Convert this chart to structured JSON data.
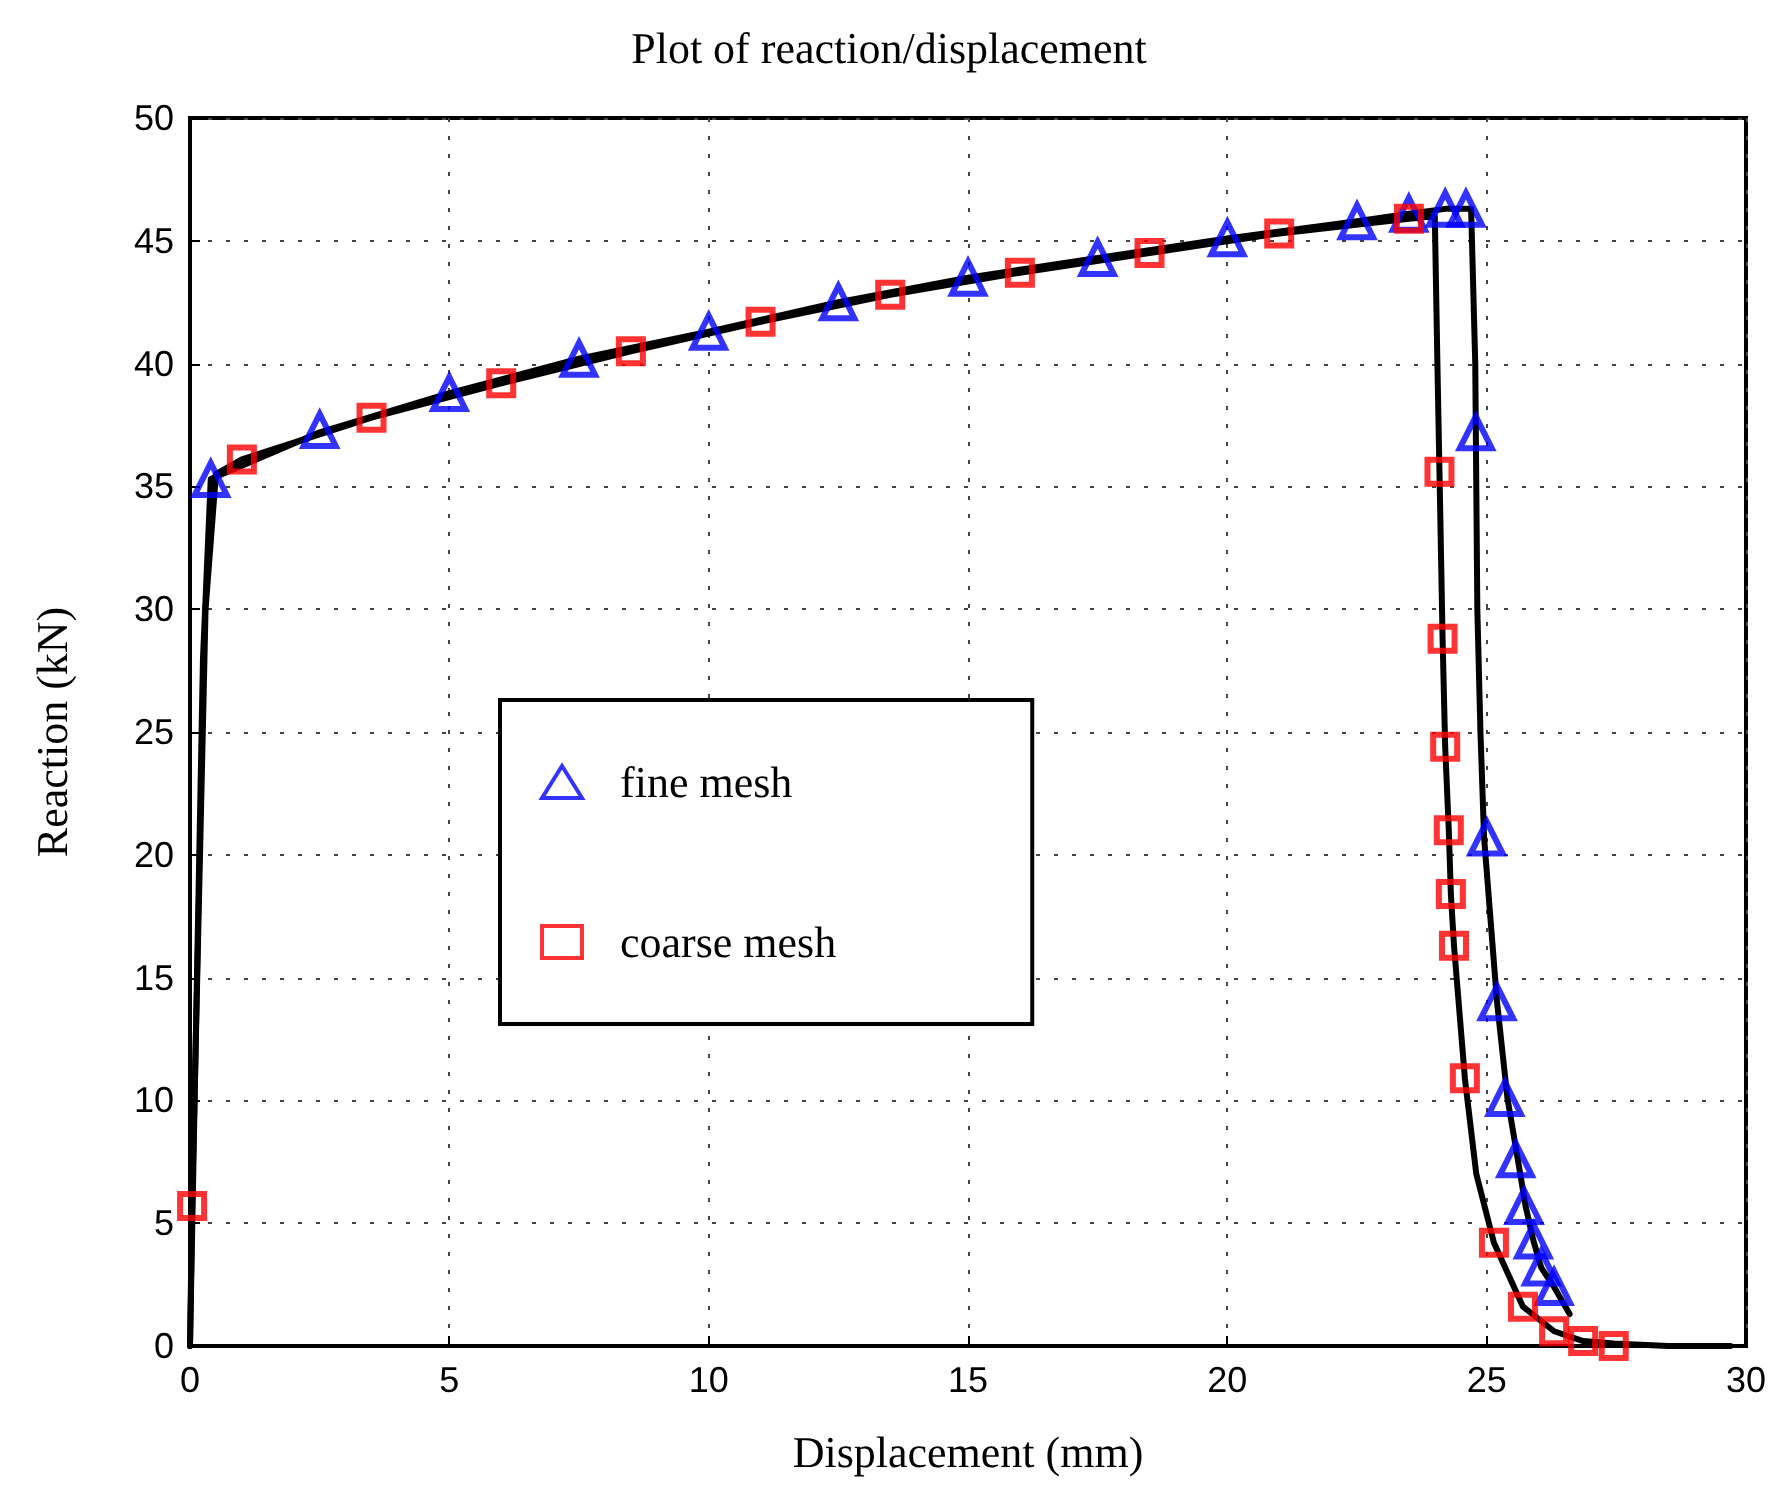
{
  "chart_data": {
    "type": "line",
    "title": "Plot of reaction/displacement",
    "xlabel": "Displacement (mm)",
    "ylabel": "Reaction (kN)",
    "xlim": [
      0,
      30
    ],
    "xticks": [
      0,
      5,
      10,
      15,
      20,
      25,
      30
    ],
    "ylim": [
      0,
      50
    ],
    "yticks": [
      0,
      5,
      10,
      15,
      20,
      25,
      30,
      35,
      40,
      45,
      50
    ],
    "grid": true,
    "legend": "left",
    "series": [
      {
        "color": "#000000",
        "marker": "none",
        "x": [
          0,
          0.25,
          0.4,
          2.5,
          5,
          7.5,
          10,
          12.5,
          15,
          17.5,
          20,
          22.5,
          23.5,
          24.2,
          24.7,
          24.78,
          24.82,
          24.88,
          24.95,
          25.2,
          25.4,
          25.6,
          25.75,
          25.9,
          26.05,
          26.3,
          26.6
        ],
        "values": [
          0,
          28,
          35.3,
          37.2,
          38.8,
          40.2,
          41.3,
          42.5,
          43.5,
          44.3,
          45.1,
          45.8,
          46.1,
          46.3,
          46.3,
          40,
          30,
          25,
          20.7,
          14,
          10.1,
          7.6,
          5.7,
          4.3,
          3.2,
          2.4,
          1.3
        ]
      },
      {
        "color": "#000000",
        "marker": "none",
        "x": [
          0,
          0.04,
          0.3,
          0.5,
          1,
          3.5,
          6,
          8.5,
          11,
          13.5,
          16,
          18.5,
          21,
          23.5,
          24.0,
          24.05,
          24.09,
          24.15,
          24.2,
          24.27,
          24.31,
          24.37,
          24.58,
          24.8,
          25.14,
          25.7,
          26.3,
          26.86,
          27.45,
          28.5,
          29.7
        ],
        "values": [
          0,
          5.7,
          30,
          35.5,
          36.1,
          37.8,
          39.2,
          40.5,
          41.7,
          42.8,
          43.7,
          44.5,
          45.3,
          45.9,
          46.0,
          40,
          35.6,
          28.8,
          24.4,
          21.0,
          18.4,
          16.3,
          10.9,
          7,
          4.2,
          1.6,
          0.6,
          0.2,
          0.1,
          0,
          0
        ]
      },
      {
        "type": "scatter",
        "name": "fine mesh",
        "color": "#0000ff",
        "marker": "triangle",
        "x": [
          0.4,
          2.5,
          5,
          7.5,
          10,
          12.5,
          15,
          17.5,
          20,
          22.5,
          23.5,
          24.2,
          24.6,
          24.79,
          25.0,
          25.2,
          25.35,
          25.56,
          25.72,
          25.9,
          26.05,
          26.3
        ],
        "values": [
          35.3,
          37.3,
          38.8,
          40.2,
          41.3,
          42.5,
          43.5,
          44.3,
          45.1,
          45.8,
          46.1,
          46.3,
          46.3,
          37.2,
          20.7,
          14.0,
          10.1,
          7.6,
          5.7,
          4.3,
          3.2,
          2.4
        ]
      },
      {
        "type": "scatter",
        "name": "coarse mesh",
        "color": "#ff0000",
        "marker": "square",
        "x": [
          0.04,
          1,
          3.5,
          6,
          8.5,
          11,
          13.5,
          16,
          18.5,
          21,
          23.5,
          24.09,
          24.15,
          24.2,
          24.27,
          24.31,
          24.37,
          24.58,
          25.14,
          25.7,
          26.3,
          26.86,
          27.45
        ],
        "values": [
          5.7,
          36.1,
          37.8,
          39.2,
          40.5,
          41.7,
          42.8,
          43.7,
          44.5,
          45.3,
          45.9,
          35.6,
          28.8,
          24.4,
          21.0,
          18.4,
          16.3,
          10.9,
          4.2,
          1.6,
          0.6,
          0.2,
          0
        ]
      }
    ]
  }
}
